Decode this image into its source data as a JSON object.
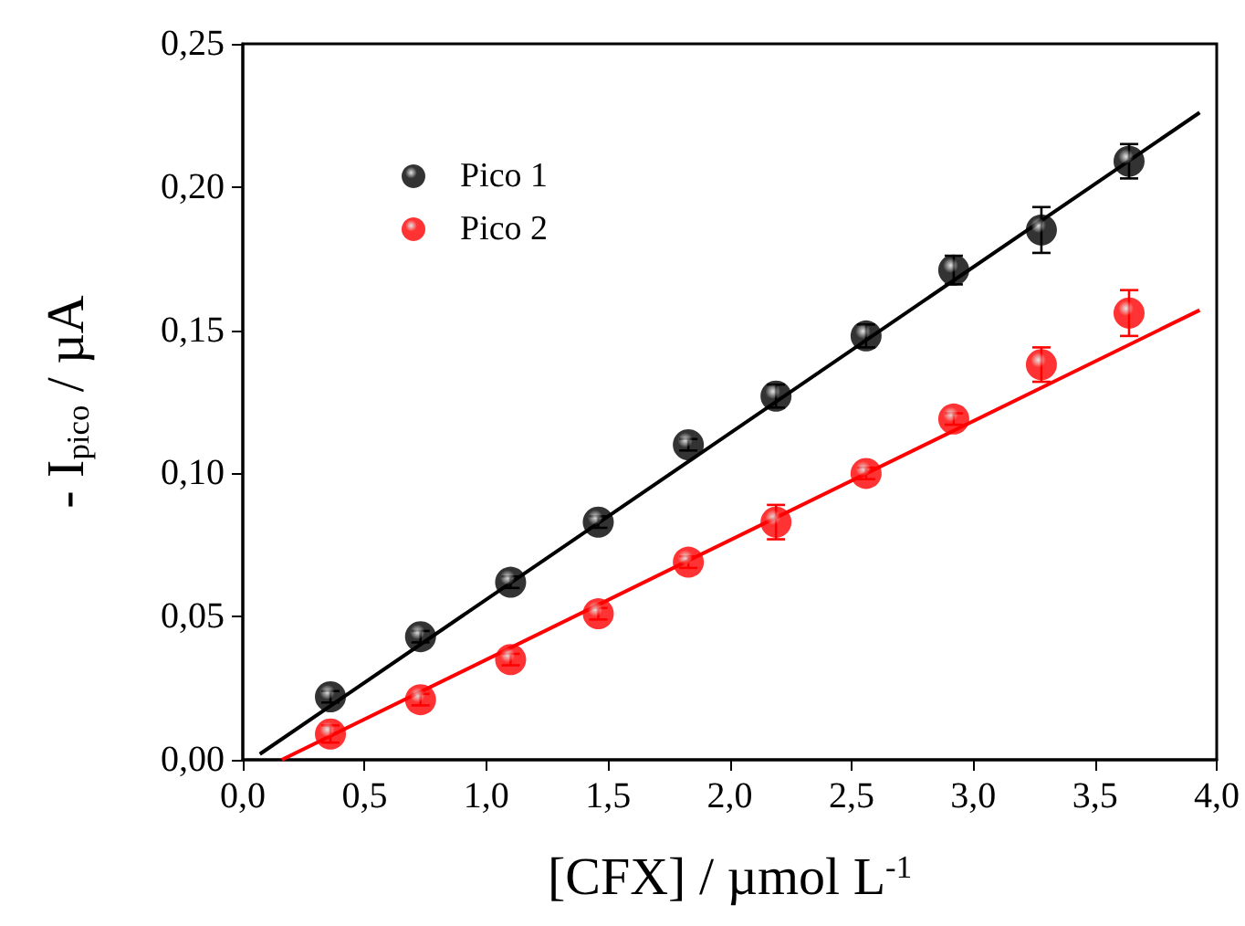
{
  "chart_data": {
    "type": "scatter",
    "xlabel": "[CFX] / µmol L$^{-1}$",
    "ylabel": "- I$_{pico}$ / µA",
    "x": [
      0.36,
      0.73,
      1.1,
      1.46,
      1.83,
      2.19,
      2.56,
      2.92,
      3.28,
      3.64
    ],
    "series": [
      {
        "name": "Pico 1",
        "color": "#000000",
        "marker": "circle",
        "values": [
          0.022,
          0.043,
          0.062,
          0.083,
          0.11,
          0.127,
          0.148,
          0.171,
          0.185,
          0.209
        ],
        "errors": [
          0.002,
          0.002,
          0.002,
          0.002,
          0.002,
          0.004,
          0.004,
          0.005,
          0.008,
          0.006
        ]
      },
      {
        "name": "Pico 2",
        "color": "#ff0000",
        "marker": "circle",
        "values": [
          0.009,
          0.021,
          0.035,
          0.051,
          0.069,
          0.083,
          0.1,
          0.119,
          0.138,
          0.156
        ],
        "errors": [
          0.003,
          0.002,
          0.002,
          0.002,
          0.002,
          0.006,
          0.002,
          0.002,
          0.006,
          0.008
        ]
      },
      {
        "type": "line",
        "marker": "none",
        "color": "#000000",
        "x": [
          0.07,
          3.93
        ],
        "values": [
          0.002,
          0.226
        ]
      },
      {
        "type": "line",
        "marker": "none",
        "color": "#ff0000",
        "x": [
          0.16,
          3.93
        ],
        "values": [
          0.0,
          0.157
        ]
      }
    ],
    "xlim": [
      0,
      4
    ],
    "xticks": [
      {
        "value": 0,
        "label": "0,0"
      },
      {
        "value": 0.5,
        "label": "0,5"
      },
      {
        "value": 1,
        "label": "1,0"
      },
      {
        "value": 1.5,
        "label": "1,5"
      },
      {
        "value": 2,
        "label": "2,0"
      },
      {
        "value": 2.5,
        "label": "2,5"
      },
      {
        "value": 3,
        "label": "3,0"
      },
      {
        "value": 3.5,
        "label": "3,5"
      },
      {
        "value": 4,
        "label": "4,0"
      }
    ],
    "ylim": [
      0,
      0.25
    ],
    "yticks": [
      {
        "value": 0,
        "label": "0,00"
      },
      {
        "value": 0.05,
        "label": "0,05"
      },
      {
        "value": 0.1,
        "label": "0,10"
      },
      {
        "value": 0.15,
        "label": "0,15"
      },
      {
        "value": 0.2,
        "label": "0,20"
      },
      {
        "value": 0.25,
        "label": "0,25"
      }
    ],
    "legend": "top left",
    "grid": false
  }
}
